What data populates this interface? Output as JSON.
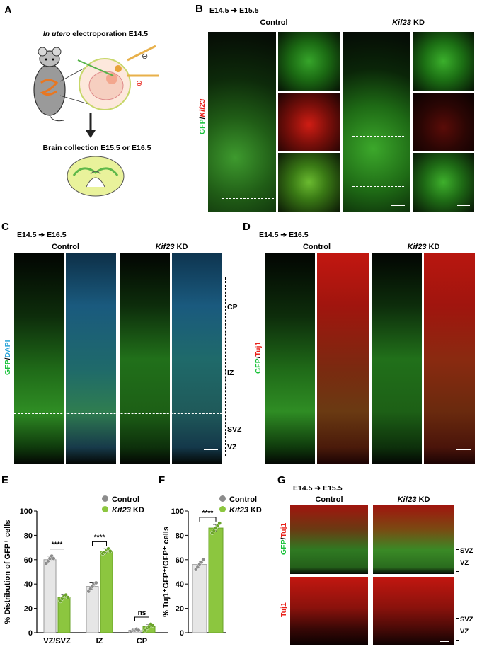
{
  "panelA": {
    "label": "A",
    "title_italic": "In utero",
    "title_rest": " electroporation E14.5",
    "step2": "Brain collection E15.5 or E16.5",
    "minus": "⊖",
    "plus": "⊕"
  },
  "panelB": {
    "label": "B",
    "timeline_from": "E14.5",
    "timeline_to": "E15.5",
    "control": "Control",
    "kd_gene": "Kif23",
    "kd_suffix": " KD",
    "stain_green": "GFP",
    "stain_sep": "/",
    "stain_red": "Kif23"
  },
  "panelC": {
    "label": "C",
    "timeline_from": "E14.5",
    "timeline_to": "E16.5",
    "control": "Control",
    "kd_gene": "Kif23",
    "kd_suffix": " KD",
    "stain_green": "GFP",
    "stain_sep": "/",
    "stain_blue": "DAPI",
    "zones": [
      "CP",
      "IZ",
      "SVZ",
      "VZ"
    ]
  },
  "panelD": {
    "label": "D",
    "timeline_from": "E14.5",
    "timeline_to": "E16.5",
    "control": "Control",
    "kd_gene": "Kif23",
    "kd_suffix": " KD",
    "stain_green": "GFP",
    "stain_sep": "/",
    "stain_red": "Tuj1"
  },
  "panelE": {
    "label": "E",
    "legend": {
      "control": "Control",
      "kd_gene": "Kif23",
      "kd_suffix": " KD"
    },
    "significance": [
      "****",
      "****",
      "ns"
    ]
  },
  "panelF": {
    "label": "F",
    "legend": {
      "control": "Control",
      "kd_gene": "Kif23",
      "kd_suffix": " KD"
    },
    "significance": [
      "****"
    ]
  },
  "panelG": {
    "label": "G",
    "timeline_from": "E14.5",
    "timeline_to": "E15.5",
    "control": "Control",
    "kd_gene": "Kif23",
    "kd_suffix": " KD",
    "stain_green": "GFP",
    "stain_sep": "/",
    "stain_red": "Tuj1",
    "stain_red_only": "Tuj1",
    "zone_svz": "SVZ",
    "zone_vz": "VZ"
  },
  "colors": {
    "control_fill": "#e6e6e6",
    "control_dot": "#8c8c8c",
    "kd_fill": "#8cc63f",
    "kd_dot": "#6aa32a",
    "gfp_green": "#19c23a",
    "red": "#e8221a",
    "dapi_blue": "#2ea6d9"
  },
  "chart_data": [
    {
      "type": "bar",
      "ylabel": "% Distribution of GFP⁺ cells",
      "categories": [
        "VZ/SVZ",
        "IZ",
        "CP"
      ],
      "ylim": [
        0,
        100
      ],
      "yticks": [
        0,
        20,
        40,
        60,
        80,
        100
      ],
      "series": [
        {
          "name": "Control",
          "values": [
            60,
            38,
            2
          ],
          "errors": [
            3,
            3,
            1
          ],
          "points": [
            [
              57,
              59,
              61,
              63,
              61
            ],
            [
              34,
              36,
              38,
              40,
              41
            ],
            [
              1,
              2,
              2,
              3,
              2
            ]
          ]
        },
        {
          "name": "Kif23 KD",
          "values": [
            29,
            67,
            5
          ],
          "errors": [
            2.5,
            2,
            2
          ],
          "points": [
            [
              26,
              28,
              30,
              31,
              29
            ],
            [
              65,
              66,
              68,
              69,
              67
            ],
            [
              2,
              4,
              5,
              7,
              6
            ]
          ]
        }
      ]
    },
    {
      "type": "bar",
      "ylabel": "% Tuj1⁺GFP⁺/GFP⁺ cells",
      "categories": [
        ""
      ],
      "ylim": [
        0,
        100
      ],
      "yticks": [
        0,
        20,
        40,
        60,
        80,
        100
      ],
      "series": [
        {
          "name": "Control",
          "values": [
            56
          ],
          "errors": [
            3
          ],
          "points": [
            [
              52,
              54,
              56,
              58,
              60
            ]
          ]
        },
        {
          "name": "Kif23 KD",
          "values": [
            86
          ],
          "errors": [
            3
          ],
          "points": [
            [
              82,
              84,
              86,
              88,
              90
            ]
          ]
        }
      ]
    }
  ]
}
